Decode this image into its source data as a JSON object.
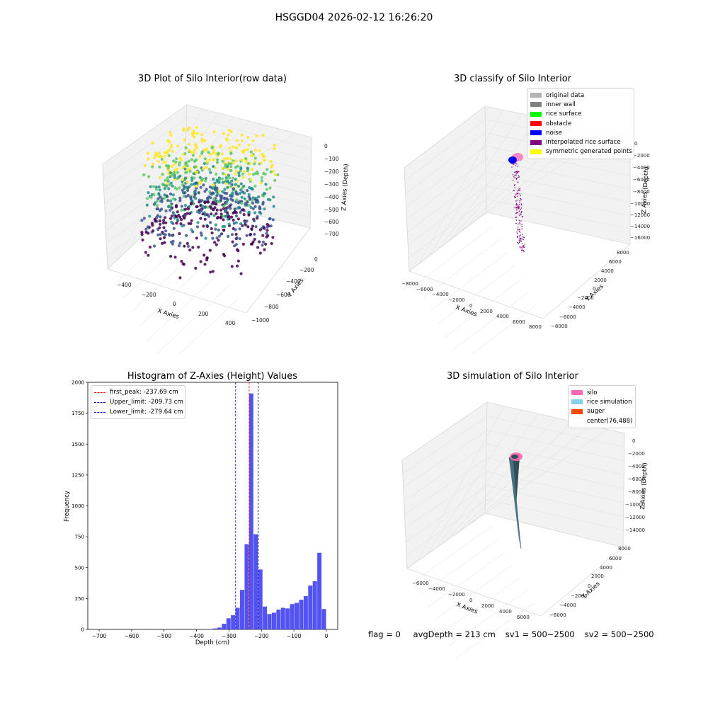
{
  "suptitle": "HSGGD04 2026-02-12 16:26:20",
  "panels": {
    "raw": {
      "title": "3D Plot of Silo Interior(row data)",
      "xlabel": "X Axies",
      "ylabel": "Y Axies",
      "zlabel": "Z Axies (Depth)",
      "xticks": [
        "−400",
        "−200",
        "0",
        "200",
        "400"
      ],
      "yticks": [
        "0",
        "−200",
        "−400",
        "−600",
        "−800",
        "−1000"
      ],
      "zticks": [
        "0",
        "−100",
        "−200",
        "−300",
        "−400",
        "−500",
        "−600",
        "−700"
      ],
      "colormap": [
        "#440154",
        "#3b528b",
        "#21918c",
        "#5ec962",
        "#fde725"
      ]
    },
    "classify": {
      "title": "3D classify of Silo Interior",
      "xlabel": "X Axies",
      "ylabel": "Y Axies",
      "zlabel": "Z Axies (Depth)",
      "xticks": [
        "−8000",
        "−6000",
        "−4000",
        "−2000",
        "0",
        "2000",
        "4000",
        "6000",
        "8000"
      ],
      "yticks": [
        "8000",
        "6000",
        "4000",
        "2000",
        "0",
        "−2000",
        "−4000",
        "−6000",
        "−8000"
      ],
      "zticks": [
        "0",
        "−2000",
        "−4000",
        "−6000",
        "−8000",
        "−10000",
        "−12000",
        "−14000",
        "−16000"
      ],
      "legend": [
        {
          "label": "original data",
          "color": "#b3b3b3"
        },
        {
          "label": "inner wall",
          "color": "#808080"
        },
        {
          "label": "rice surface",
          "color": "#00ff00"
        },
        {
          "label": "obstacle",
          "color": "#ff0000"
        },
        {
          "label": "noise",
          "color": "#0000ff"
        },
        {
          "label": "interpolated rice surface",
          "color": "#800080"
        },
        {
          "label": "symmetric generated points",
          "color": "#ffff00"
        }
      ]
    },
    "simulation": {
      "title": "3D simulation of Silo Interior",
      "xlabel": "X Axies",
      "ylabel": "Y Axies",
      "zlabel": "Z Axies (Depth)",
      "xticks": [
        "−6000",
        "−4000",
        "−2000",
        "0",
        "2000",
        "4000",
        "6000"
      ],
      "yticks": [
        "8000",
        "6000",
        "4000",
        "2000",
        "0",
        "−2000",
        "−4000",
        "−6000"
      ],
      "zticks": [
        "0",
        "−2000",
        "−4000",
        "−6000",
        "−8000",
        "−10000",
        "−12000",
        "−14000"
      ],
      "legend": [
        {
          "label": "silo",
          "color": "#ff69b4"
        },
        {
          "label": "rice simulation",
          "color": "#87ceeb"
        },
        {
          "label": "auger",
          "color": "#ff4500"
        },
        {
          "label": "center(76,488)",
          "color": "#ffffff"
        }
      ]
    }
  },
  "chart_data": {
    "type": "bar",
    "title": "Histogram of Z-Axies (Height) Values",
    "xlabel": "Depth (cm)",
    "ylabel": "Frequency",
    "xlim": [
      -735,
      35
    ],
    "ylim": [
      0,
      2000
    ],
    "xticks": [
      -700,
      -600,
      -500,
      -400,
      -300,
      -200,
      -100,
      0
    ],
    "yticks": [
      0,
      250,
      500,
      750,
      1000,
      1250,
      1500,
      1750,
      2000
    ],
    "bar_color": "#4a4af0",
    "bin_width": 14,
    "bins_left": [
      -364,
      -350,
      -336,
      -322,
      -308,
      -294,
      -280,
      -266,
      -252,
      -238,
      -224,
      -210,
      -196,
      -182,
      -168,
      -154,
      -140,
      -126,
      -112,
      -98,
      -84,
      -70,
      -56,
      -42,
      -28,
      -14
    ],
    "values": [
      3,
      8,
      15,
      45,
      90,
      115,
      175,
      320,
      690,
      1910,
      770,
      485,
      185,
      125,
      135,
      160,
      175,
      170,
      205,
      215,
      240,
      270,
      355,
      390,
      620,
      165
    ],
    "reference_lines": [
      {
        "label": "first_peak: -237.69 cm",
        "x": -237.69,
        "color": "#ff0000"
      },
      {
        "label": "Upper_limit: -209.73 cm",
        "x": -209.73,
        "color": "#00008b"
      },
      {
        "label": "Lower_limit: -279.64 cm",
        "x": -279.64,
        "color": "#0000ff"
      }
    ]
  },
  "footer": {
    "flag": "flag = 0",
    "avg": "avgDepth = 213 cm",
    "sv1": "sv1 = 500~2500",
    "sv2": "sv2 = 500~2500"
  }
}
